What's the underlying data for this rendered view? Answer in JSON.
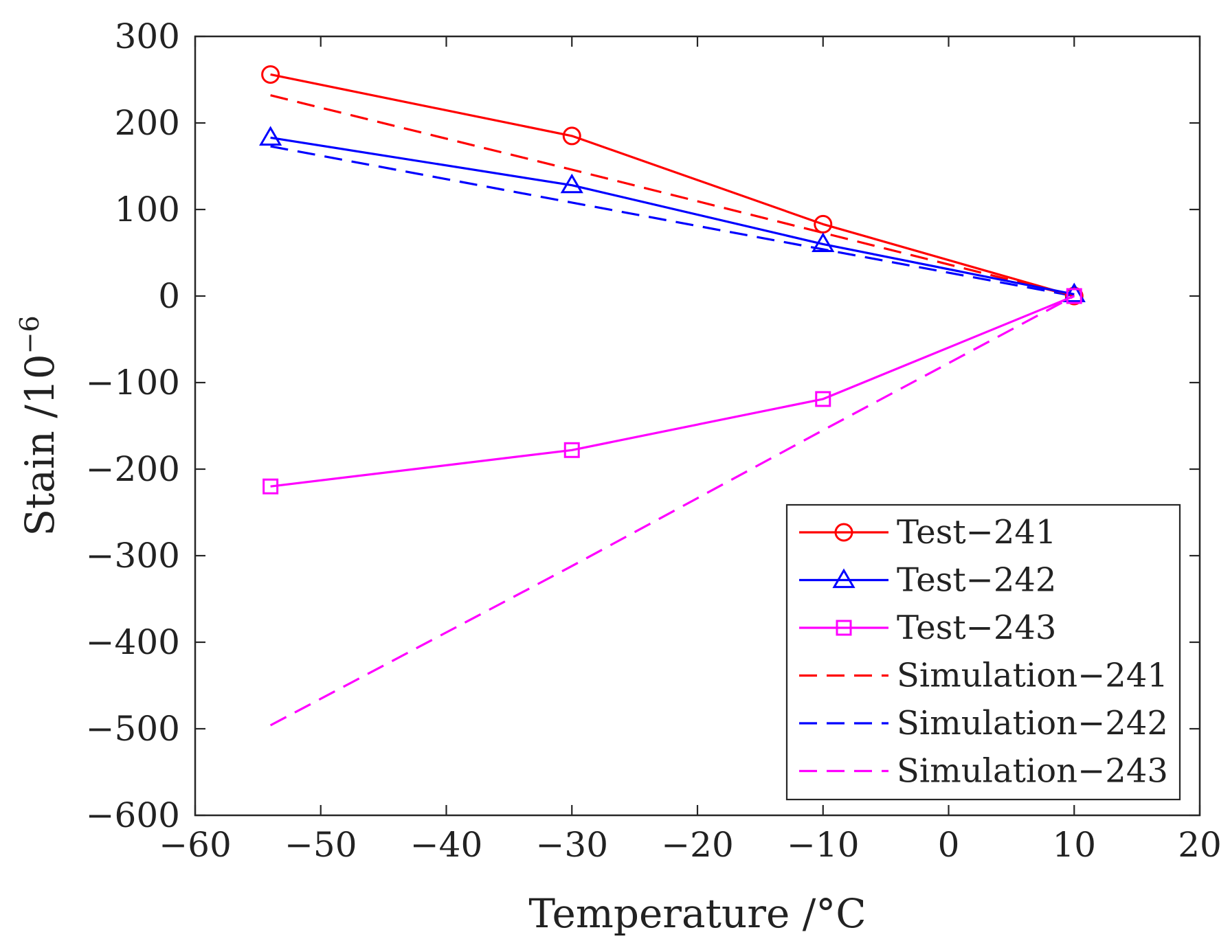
{
  "chart_data": {
    "type": "line",
    "title": "",
    "xlabel": "Temperature /°C",
    "ylabel": "Stain /10",
    "ylabel_exponent": "−6",
    "xlim": [
      -60,
      20
    ],
    "ylim": [
      -600,
      300
    ],
    "x_ticks": [
      -60,
      -50,
      -40,
      -30,
      -20,
      -10,
      0,
      10,
      20
    ],
    "y_ticks": [
      -600,
      -500,
      -400,
      -300,
      -200,
      -100,
      0,
      100,
      200,
      300
    ],
    "x_tick_labels": [
      "−60",
      "−50",
      "−40",
      "−30",
      "−20",
      "−10",
      "0",
      "10",
      "20"
    ],
    "y_tick_labels": [
      "−600",
      "−500",
      "−400",
      "−300",
      "−200",
      "−100",
      "0",
      "100",
      "200",
      "300"
    ],
    "grid": false,
    "legend_position": "bottom-right",
    "series": [
      {
        "name": "Test−241",
        "color": "#ff0000",
        "style": "solid",
        "marker": "circle",
        "x": [
          -54,
          -30,
          -10,
          10
        ],
        "y": [
          256,
          185,
          83,
          0
        ]
      },
      {
        "name": "Test−242",
        "color": "#0000ff",
        "style": "solid",
        "marker": "triangle",
        "x": [
          -54,
          -30,
          -10,
          10
        ],
        "y": [
          183,
          128,
          60,
          2
        ]
      },
      {
        "name": "Test−243",
        "color": "#ff00ff",
        "style": "solid",
        "marker": "square",
        "x": [
          -54,
          -30,
          -10,
          10
        ],
        "y": [
          -220,
          -178,
          -119,
          0
        ]
      },
      {
        "name": "Simulation−241",
        "color": "#ff0000",
        "style": "dashed",
        "marker": "none",
        "x": [
          -54,
          -30,
          -10,
          10
        ],
        "y": [
          232,
          146,
          73,
          0
        ]
      },
      {
        "name": "Simulation−242",
        "color": "#0000ff",
        "style": "dashed",
        "marker": "none",
        "x": [
          -54,
          -30,
          -10,
          10
        ],
        "y": [
          173,
          108,
          54,
          0
        ]
      },
      {
        "name": "Simulation−243",
        "color": "#ff00ff",
        "style": "dashed",
        "marker": "none",
        "x": [
          -54,
          -30,
          -10,
          10
        ],
        "y": [
          -496,
          -312,
          -155,
          0
        ]
      }
    ]
  }
}
